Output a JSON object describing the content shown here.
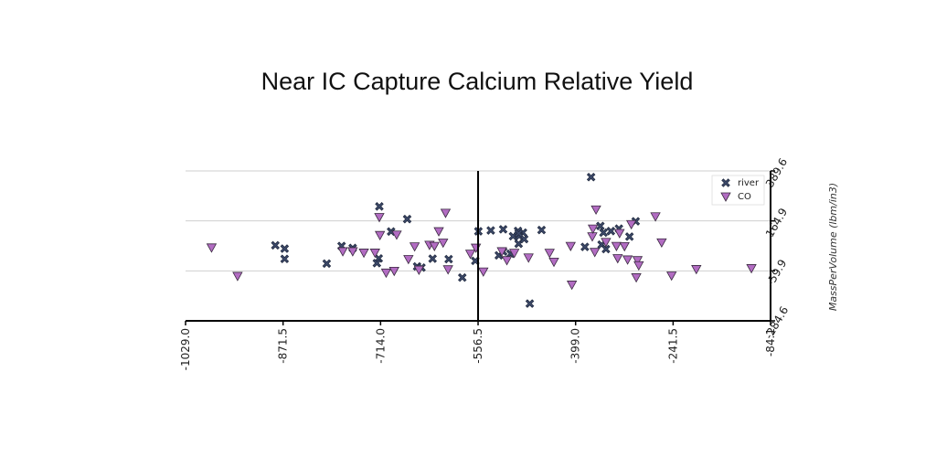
{
  "chart_data": {
    "type": "scatter",
    "title": "Near IC Capture Calcium Relative Yield",
    "xlabel": "",
    "ylabel": "MassPerVolume (lbm/in3)",
    "xlim": [
      -1029.0,
      -84.1
    ],
    "ylim": [
      -284.6,
      389.6
    ],
    "x_ticks": [
      "-1029.0",
      "-871.5",
      "-714.0",
      "-556.5",
      "-399.0",
      "-241.5",
      "-84.1"
    ],
    "y_ticks": [
      "-284.6",
      "-59.9",
      "164.9",
      "389.6"
    ],
    "grid": "horizontal",
    "legend_position": "top-right",
    "series": [
      {
        "name": "river",
        "marker": "x",
        "color": "#3d4a6b",
        "points": [
          [
            -374,
            362
          ],
          [
            -716,
            230
          ],
          [
            -671,
            173
          ],
          [
            -697,
            117
          ],
          [
            -536,
            122
          ],
          [
            -516,
            127
          ],
          [
            -556,
            118
          ],
          [
            -484,
            112
          ],
          [
            -500,
            96
          ],
          [
            -454,
            124
          ],
          [
            -490,
            97
          ],
          [
            -492,
            120
          ],
          [
            -359,
            142
          ],
          [
            -342,
            119
          ],
          [
            -329,
            130
          ],
          [
            -312,
            94
          ],
          [
            -302,
            163
          ],
          [
            -884,
            55
          ],
          [
            -869,
            40
          ],
          [
            -869,
            -6
          ],
          [
            -777,
            52
          ],
          [
            -759,
            43
          ],
          [
            -801,
            -27
          ],
          [
            -717,
            -4
          ],
          [
            -720,
            -25
          ],
          [
            -655,
            -40
          ],
          [
            -648,
            -45
          ],
          [
            -630,
            -5
          ],
          [
            -604,
            -7
          ],
          [
            -582,
            -90
          ],
          [
            -561,
            -15
          ],
          [
            -523,
            10
          ],
          [
            -516,
            27
          ],
          [
            -491,
            62
          ],
          [
            -482,
            83
          ],
          [
            -354,
            112
          ],
          [
            -357,
            58
          ],
          [
            -384,
            48
          ],
          [
            -350,
            38
          ],
          [
            -473,
            -207
          ],
          [
            -491,
            109
          ],
          [
            -504,
            17
          ]
        ]
      },
      {
        "name": "CO",
        "marker": "triangle-down",
        "color": "#b26cc2",
        "points": [
          [
            -987,
            45
          ],
          [
            -945,
            -83
          ],
          [
            -775,
            28
          ],
          [
            -759,
            28
          ],
          [
            -741,
            22
          ],
          [
            -723,
            22
          ],
          [
            -715,
            101
          ],
          [
            -716,
            182
          ],
          [
            -705,
            -68
          ],
          [
            -692,
            -60
          ],
          [
            -688,
            103
          ],
          [
            -669,
            -7
          ],
          [
            -659,
            50
          ],
          [
            -652,
            -55
          ],
          [
            -635,
            57
          ],
          [
            -627,
            52
          ],
          [
            -620,
            118
          ],
          [
            -613,
            67
          ],
          [
            -609,
            201
          ],
          [
            -605,
            -53
          ],
          [
            -569,
            17
          ],
          [
            -560,
            44
          ],
          [
            -548,
            -63
          ],
          [
            -518,
            28
          ],
          [
            -510,
            -12
          ],
          [
            -498,
            21
          ],
          [
            -475,
            0
          ],
          [
            -441,
            21
          ],
          [
            -434,
            -19
          ],
          [
            -407,
            52
          ],
          [
            -405,
            -122
          ],
          [
            -372,
            95
          ],
          [
            -366,
            216
          ],
          [
            -333,
            52
          ],
          [
            -331,
            -3
          ],
          [
            -320,
            51
          ],
          [
            -315,
            -9
          ],
          [
            -309,
            150
          ],
          [
            -299,
            -12
          ],
          [
            -301,
            -89
          ],
          [
            -297,
            -35
          ],
          [
            -270,
            185
          ],
          [
            -260,
            68
          ],
          [
            -244,
            -81
          ],
          [
            -204,
            -52
          ],
          [
            -115,
            -48
          ],
          [
            -328,
            110
          ],
          [
            -371,
            130
          ],
          [
            -350,
            70
          ],
          [
            -368,
            25
          ]
        ]
      }
    ]
  }
}
